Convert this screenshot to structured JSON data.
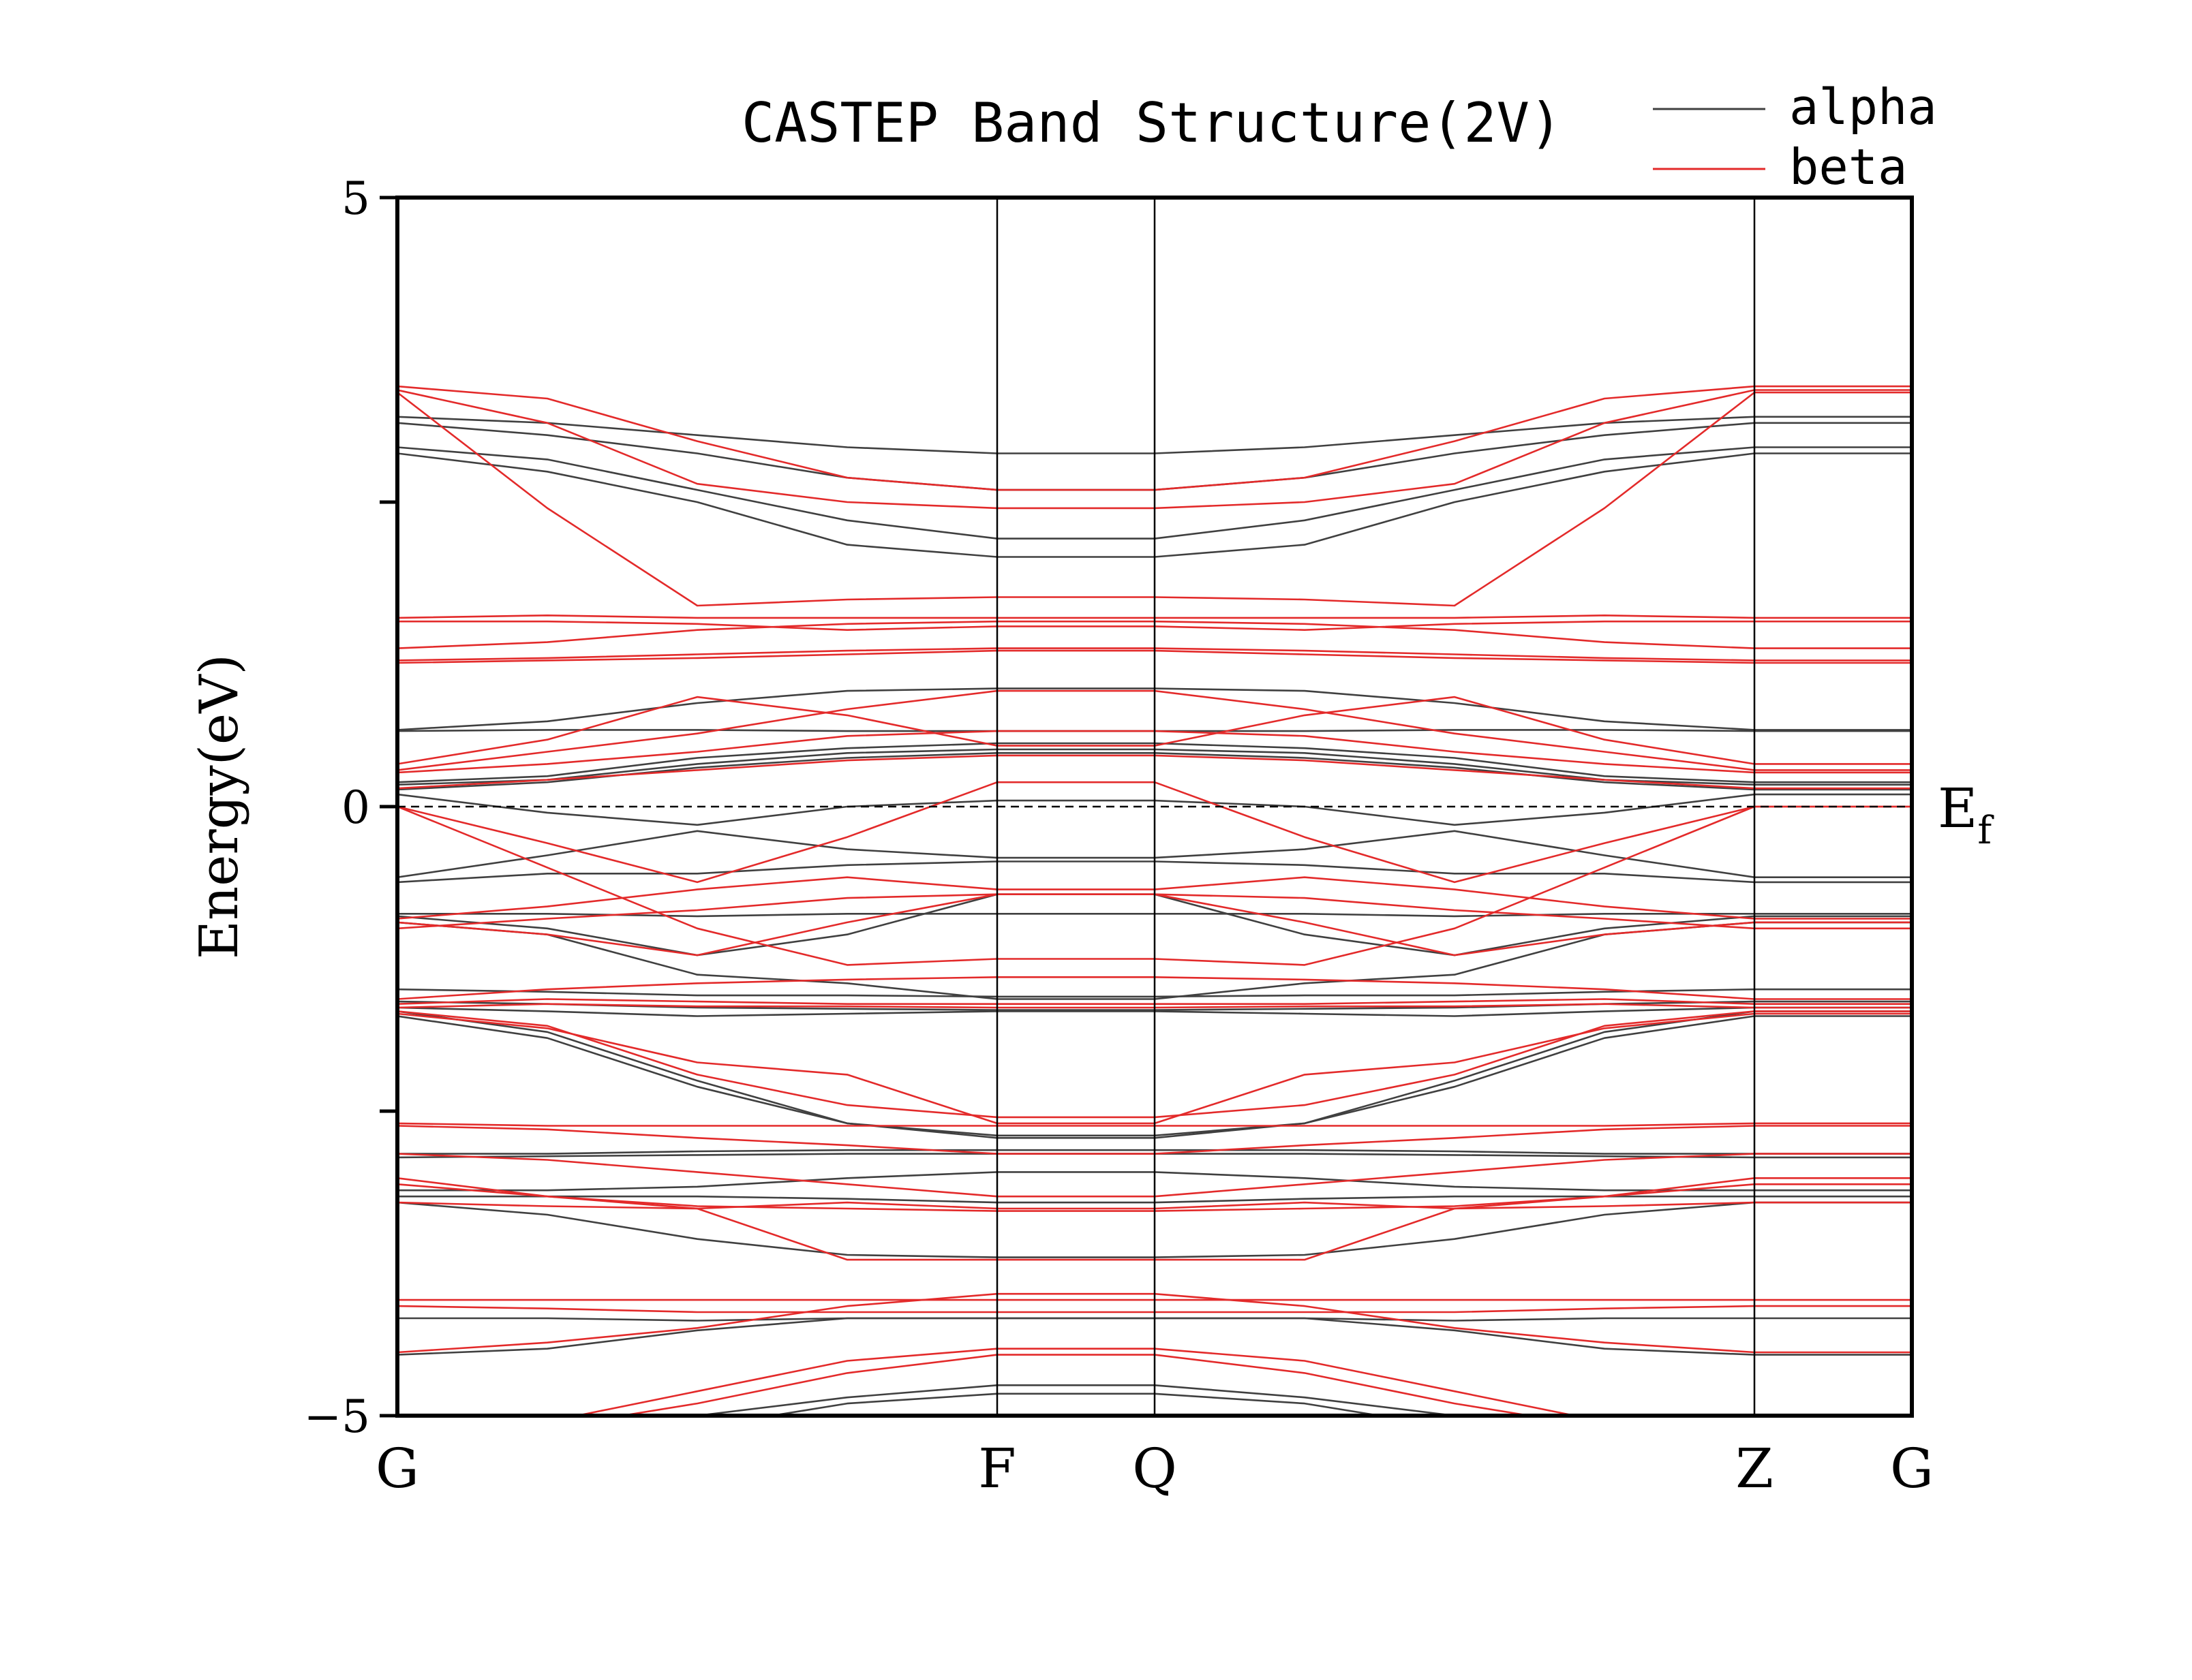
{
  "chart_data": {
    "type": "line",
    "title": "CASTEP Band Structure(2V)",
    "ylabel": "Energy(eV)",
    "xlabel": "",
    "ylim": [
      -5,
      5
    ],
    "y_ticks": [
      {
        "value": 5,
        "label": "5"
      },
      {
        "value": 2.5,
        "label": ""
      },
      {
        "value": 0,
        "label": "0"
      },
      {
        "value": -2.5,
        "label": ""
      },
      {
        "value": -5,
        "label": "−5"
      }
    ],
    "k_path": [
      {
        "label": "G",
        "x": 0
      },
      {
        "label": "F",
        "x": 4
      },
      {
        "label": "Q",
        "x": 5.05
      },
      {
        "label": "Z",
        "x": 9.05
      },
      {
        "label": "G",
        "x": 10.1
      }
    ],
    "k_x": [
      0,
      1,
      2,
      3,
      4,
      5.05,
      6.05,
      7.05,
      8.05,
      9.05,
      10.1
    ],
    "fermi_level": {
      "value": 0,
      "label": "E",
      "subscript": "f"
    },
    "grid": false,
    "legend": {
      "position": "top-right"
    },
    "series": [
      {
        "name": "alpha",
        "color": "#404040",
        "bands": [
          [
            3.2,
            3.15,
            3.05,
            2.95,
            2.9,
            2.9,
            2.95,
            3.05,
            3.15,
            3.2,
            3.2
          ],
          [
            3.15,
            3.05,
            2.9,
            2.7,
            2.6,
            2.6,
            2.7,
            2.9,
            3.05,
            3.15,
            3.15
          ],
          [
            2.95,
            2.85,
            2.6,
            2.35,
            2.2,
            2.2,
            2.35,
            2.6,
            2.85,
            2.95,
            2.95
          ],
          [
            2.9,
            2.75,
            2.5,
            2.15,
            2.05,
            2.05,
            2.15,
            2.5,
            2.75,
            2.9,
            2.9
          ],
          [
            0.63,
            0.7,
            0.85,
            0.95,
            0.97,
            0.97,
            0.95,
            0.85,
            0.7,
            0.63,
            0.63
          ],
          [
            0.62,
            0.63,
            0.63,
            0.62,
            0.62,
            0.62,
            0.62,
            0.63,
            0.63,
            0.62,
            0.62
          ],
          [
            0.2,
            0.25,
            0.4,
            0.48,
            0.52,
            0.52,
            0.48,
            0.4,
            0.25,
            0.2,
            0.2
          ],
          [
            0.18,
            0.22,
            0.35,
            0.44,
            0.47,
            0.47,
            0.44,
            0.35,
            0.22,
            0.18,
            0.18
          ],
          [
            0.14,
            0.2,
            0.32,
            0.4,
            0.44,
            0.44,
            0.4,
            0.32,
            0.2,
            0.14,
            0.14
          ],
          [
            0.1,
            -0.05,
            -0.15,
            0.0,
            0.05,
            0.05,
            0.0,
            -0.15,
            -0.05,
            0.1,
            0.1
          ],
          [
            -0.58,
            -0.4,
            -0.2,
            -0.35,
            -0.42,
            -0.42,
            -0.35,
            -0.2,
            -0.4,
            -0.58,
            -0.58
          ],
          [
            -0.62,
            -0.55,
            -0.55,
            -0.48,
            -0.45,
            -0.45,
            -0.48,
            -0.55,
            -0.55,
            -0.62,
            -0.62
          ],
          [
            -0.88,
            -0.88,
            -0.9,
            -0.88,
            -0.88,
            -0.88,
            -0.88,
            -0.9,
            -0.88,
            -0.88,
            -0.88
          ],
          [
            -0.9,
            -1.0,
            -1.22,
            -1.05,
            -0.72,
            -0.72,
            -1.05,
            -1.22,
            -1.0,
            -0.9,
            -0.9
          ],
          [
            -0.95,
            -1.05,
            -1.38,
            -1.45,
            -1.58,
            -1.58,
            -1.45,
            -1.38,
            -1.05,
            -0.95,
            -0.95
          ],
          [
            -1.5,
            -1.52,
            -1.55,
            -1.55,
            -1.56,
            -1.56,
            -1.55,
            -1.55,
            -1.52,
            -1.5,
            -1.5
          ],
          [
            -1.6,
            -1.62,
            -1.65,
            -1.66,
            -1.67,
            -1.67,
            -1.66,
            -1.65,
            -1.62,
            -1.6,
            -1.6
          ],
          [
            -1.65,
            -1.68,
            -1.72,
            -1.7,
            -1.68,
            -1.68,
            -1.7,
            -1.72,
            -1.68,
            -1.65,
            -1.65
          ],
          [
            -1.68,
            -1.85,
            -2.25,
            -2.6,
            -2.7,
            -2.7,
            -2.6,
            -2.25,
            -1.85,
            -1.68,
            -1.68
          ],
          [
            -1.72,
            -1.9,
            -2.3,
            -2.6,
            -2.72,
            -2.72,
            -2.6,
            -2.3,
            -1.9,
            -1.72,
            -1.72
          ],
          [
            -2.85,
            -2.85,
            -2.83,
            -2.82,
            -2.82,
            -2.82,
            -2.82,
            -2.83,
            -2.85,
            -2.85,
            -2.85
          ],
          [
            -2.88,
            -2.87,
            -2.86,
            -2.85,
            -2.85,
            -2.85,
            -2.85,
            -2.86,
            -2.87,
            -2.88,
            -2.88
          ],
          [
            -3.15,
            -3.15,
            -3.12,
            -3.05,
            -3.0,
            -3.0,
            -3.05,
            -3.12,
            -3.15,
            -3.15,
            -3.15
          ],
          [
            -3.2,
            -3.2,
            -3.2,
            -3.22,
            -3.25,
            -3.25,
            -3.22,
            -3.2,
            -3.2,
            -3.2,
            -3.2
          ],
          [
            -3.25,
            -3.35,
            -3.55,
            -3.68,
            -3.7,
            -3.7,
            -3.68,
            -3.55,
            -3.35,
            -3.25,
            -3.25
          ],
          [
            -4.2,
            -4.2,
            -4.22,
            -4.2,
            -4.2,
            -4.2,
            -4.2,
            -4.22,
            -4.2,
            -4.2,
            -4.2
          ],
          [
            -4.5,
            -4.45,
            -4.3,
            -4.2,
            -4.2,
            -4.2,
            -4.2,
            -4.3,
            -4.45,
            -4.5,
            -4.5
          ],
          [
            -5.3,
            -5.2,
            -5.0,
            -4.85,
            -4.75,
            -4.75,
            -4.85,
            -5.0,
            -5.2,
            -5.3,
            -5.3
          ],
          [
            -5.5,
            -5.35,
            -5.1,
            -4.9,
            -4.82,
            -4.82,
            -4.9,
            -5.1,
            -5.35,
            -5.5,
            -5.5
          ]
        ]
      },
      {
        "name": "beta",
        "color": "#e32a2a",
        "bands": [
          [
            3.45,
            3.35,
            3.0,
            2.7,
            2.6,
            2.6,
            2.7,
            3.0,
            3.35,
            3.45,
            3.45
          ],
          [
            3.42,
            3.15,
            2.65,
            2.5,
            2.45,
            2.45,
            2.5,
            2.65,
            3.15,
            3.42,
            3.42
          ],
          [
            3.4,
            2.45,
            1.65,
            1.7,
            1.72,
            1.72,
            1.7,
            1.65,
            2.45,
            3.4,
            3.4
          ],
          [
            1.55,
            1.57,
            1.55,
            1.55,
            1.55,
            1.55,
            1.55,
            1.55,
            1.57,
            1.55,
            1.55
          ],
          [
            1.52,
            1.52,
            1.5,
            1.45,
            1.48,
            1.48,
            1.45,
            1.5,
            1.52,
            1.52,
            1.52
          ],
          [
            1.3,
            1.35,
            1.45,
            1.5,
            1.52,
            1.52,
            1.5,
            1.45,
            1.35,
            1.3,
            1.3
          ],
          [
            1.2,
            1.22,
            1.25,
            1.28,
            1.3,
            1.3,
            1.28,
            1.25,
            1.22,
            1.2,
            1.2
          ],
          [
            1.18,
            1.2,
            1.22,
            1.25,
            1.28,
            1.28,
            1.25,
            1.22,
            1.2,
            1.18,
            1.18
          ],
          [
            0.35,
            0.55,
            0.9,
            0.75,
            0.5,
            0.5,
            0.75,
            0.9,
            0.55,
            0.35,
            0.35
          ],
          [
            0.3,
            0.45,
            0.6,
            0.8,
            0.95,
            0.95,
            0.8,
            0.6,
            0.45,
            0.3,
            0.3
          ],
          [
            0.28,
            0.35,
            0.45,
            0.58,
            0.62,
            0.62,
            0.58,
            0.45,
            0.35,
            0.28,
            0.28
          ],
          [
            0.15,
            0.22,
            0.3,
            0.38,
            0.42,
            0.42,
            0.38,
            0.3,
            0.22,
            0.15,
            0.15
          ],
          [
            0.0,
            -0.3,
            -0.62,
            -0.25,
            0.2,
            0.2,
            -0.25,
            -0.62,
            -0.3,
            0.0,
            0.0
          ],
          [
            0.0,
            -0.5,
            -1.0,
            -1.3,
            -1.25,
            -1.25,
            -1.3,
            -1.0,
            -0.5,
            0.0,
            0.0
          ],
          [
            -0.92,
            -0.82,
            -0.68,
            -0.58,
            -0.68,
            -0.68,
            -0.58,
            -0.68,
            -0.82,
            -0.92,
            -0.92
          ],
          [
            -0.95,
            -1.05,
            -1.22,
            -0.95,
            -0.72,
            -0.72,
            -0.95,
            -1.22,
            -1.05,
            -0.95,
            -0.95
          ],
          [
            -1.0,
            -0.92,
            -0.85,
            -0.75,
            -0.72,
            -0.72,
            -0.75,
            -0.85,
            -0.92,
            -1.0,
            -1.0
          ],
          [
            -1.58,
            -1.5,
            -1.45,
            -1.42,
            -1.4,
            -1.4,
            -1.42,
            -1.45,
            -1.5,
            -1.58,
            -1.58
          ],
          [
            -1.62,
            -1.58,
            -1.6,
            -1.62,
            -1.62,
            -1.62,
            -1.62,
            -1.6,
            -1.58,
            -1.62,
            -1.62
          ],
          [
            -1.65,
            -1.62,
            -1.64,
            -1.64,
            -1.65,
            -1.65,
            -1.64,
            -1.64,
            -1.62,
            -1.65,
            -1.65
          ],
          [
            -1.68,
            -1.8,
            -2.2,
            -2.45,
            -2.55,
            -2.55,
            -2.45,
            -2.2,
            -1.8,
            -1.68,
            -1.68
          ],
          [
            -1.7,
            -1.82,
            -2.1,
            -2.2,
            -2.6,
            -2.6,
            -2.2,
            -2.1,
            -1.82,
            -1.7,
            -1.7
          ],
          [
            -2.6,
            -2.62,
            -2.62,
            -2.62,
            -2.62,
            -2.62,
            -2.62,
            -2.62,
            -2.62,
            -2.6,
            -2.6
          ],
          [
            -2.62,
            -2.65,
            -2.72,
            -2.78,
            -2.85,
            -2.85,
            -2.78,
            -2.72,
            -2.65,
            -2.62,
            -2.62
          ],
          [
            -2.85,
            -2.9,
            -3.0,
            -3.1,
            -3.2,
            -3.2,
            -3.1,
            -3.0,
            -2.9,
            -2.85,
            -2.85
          ],
          [
            -3.05,
            -3.2,
            -3.3,
            -3.25,
            -3.3,
            -3.3,
            -3.25,
            -3.3,
            -3.2,
            -3.05,
            -3.05
          ],
          [
            -3.1,
            -3.2,
            -3.28,
            -3.3,
            -3.32,
            -3.32,
            -3.3,
            -3.28,
            -3.2,
            -3.1,
            -3.1
          ],
          [
            -3.25,
            -3.28,
            -3.3,
            -3.72,
            -3.72,
            -3.72,
            -3.72,
            -3.3,
            -3.28,
            -3.25,
            -3.25
          ],
          [
            -4.05,
            -4.05,
            -4.05,
            -4.05,
            -4.05,
            -4.05,
            -4.05,
            -4.05,
            -4.05,
            -4.05,
            -4.05
          ],
          [
            -4.1,
            -4.12,
            -4.15,
            -4.15,
            -4.15,
            -4.15,
            -4.15,
            -4.15,
            -4.12,
            -4.1,
            -4.1
          ],
          [
            -4.48,
            -4.4,
            -4.28,
            -4.1,
            -4.0,
            -4.0,
            -4.1,
            -4.28,
            -4.4,
            -4.48,
            -4.48
          ],
          [
            -5.15,
            -5.05,
            -4.8,
            -4.55,
            -4.45,
            -4.45,
            -4.55,
            -4.8,
            -5.05,
            -5.15,
            -5.15
          ],
          [
            -5.3,
            -5.1,
            -4.9,
            -4.65,
            -4.5,
            -4.5,
            -4.65,
            -4.9,
            -5.1,
            -5.3,
            -5.3
          ]
        ]
      }
    ]
  }
}
